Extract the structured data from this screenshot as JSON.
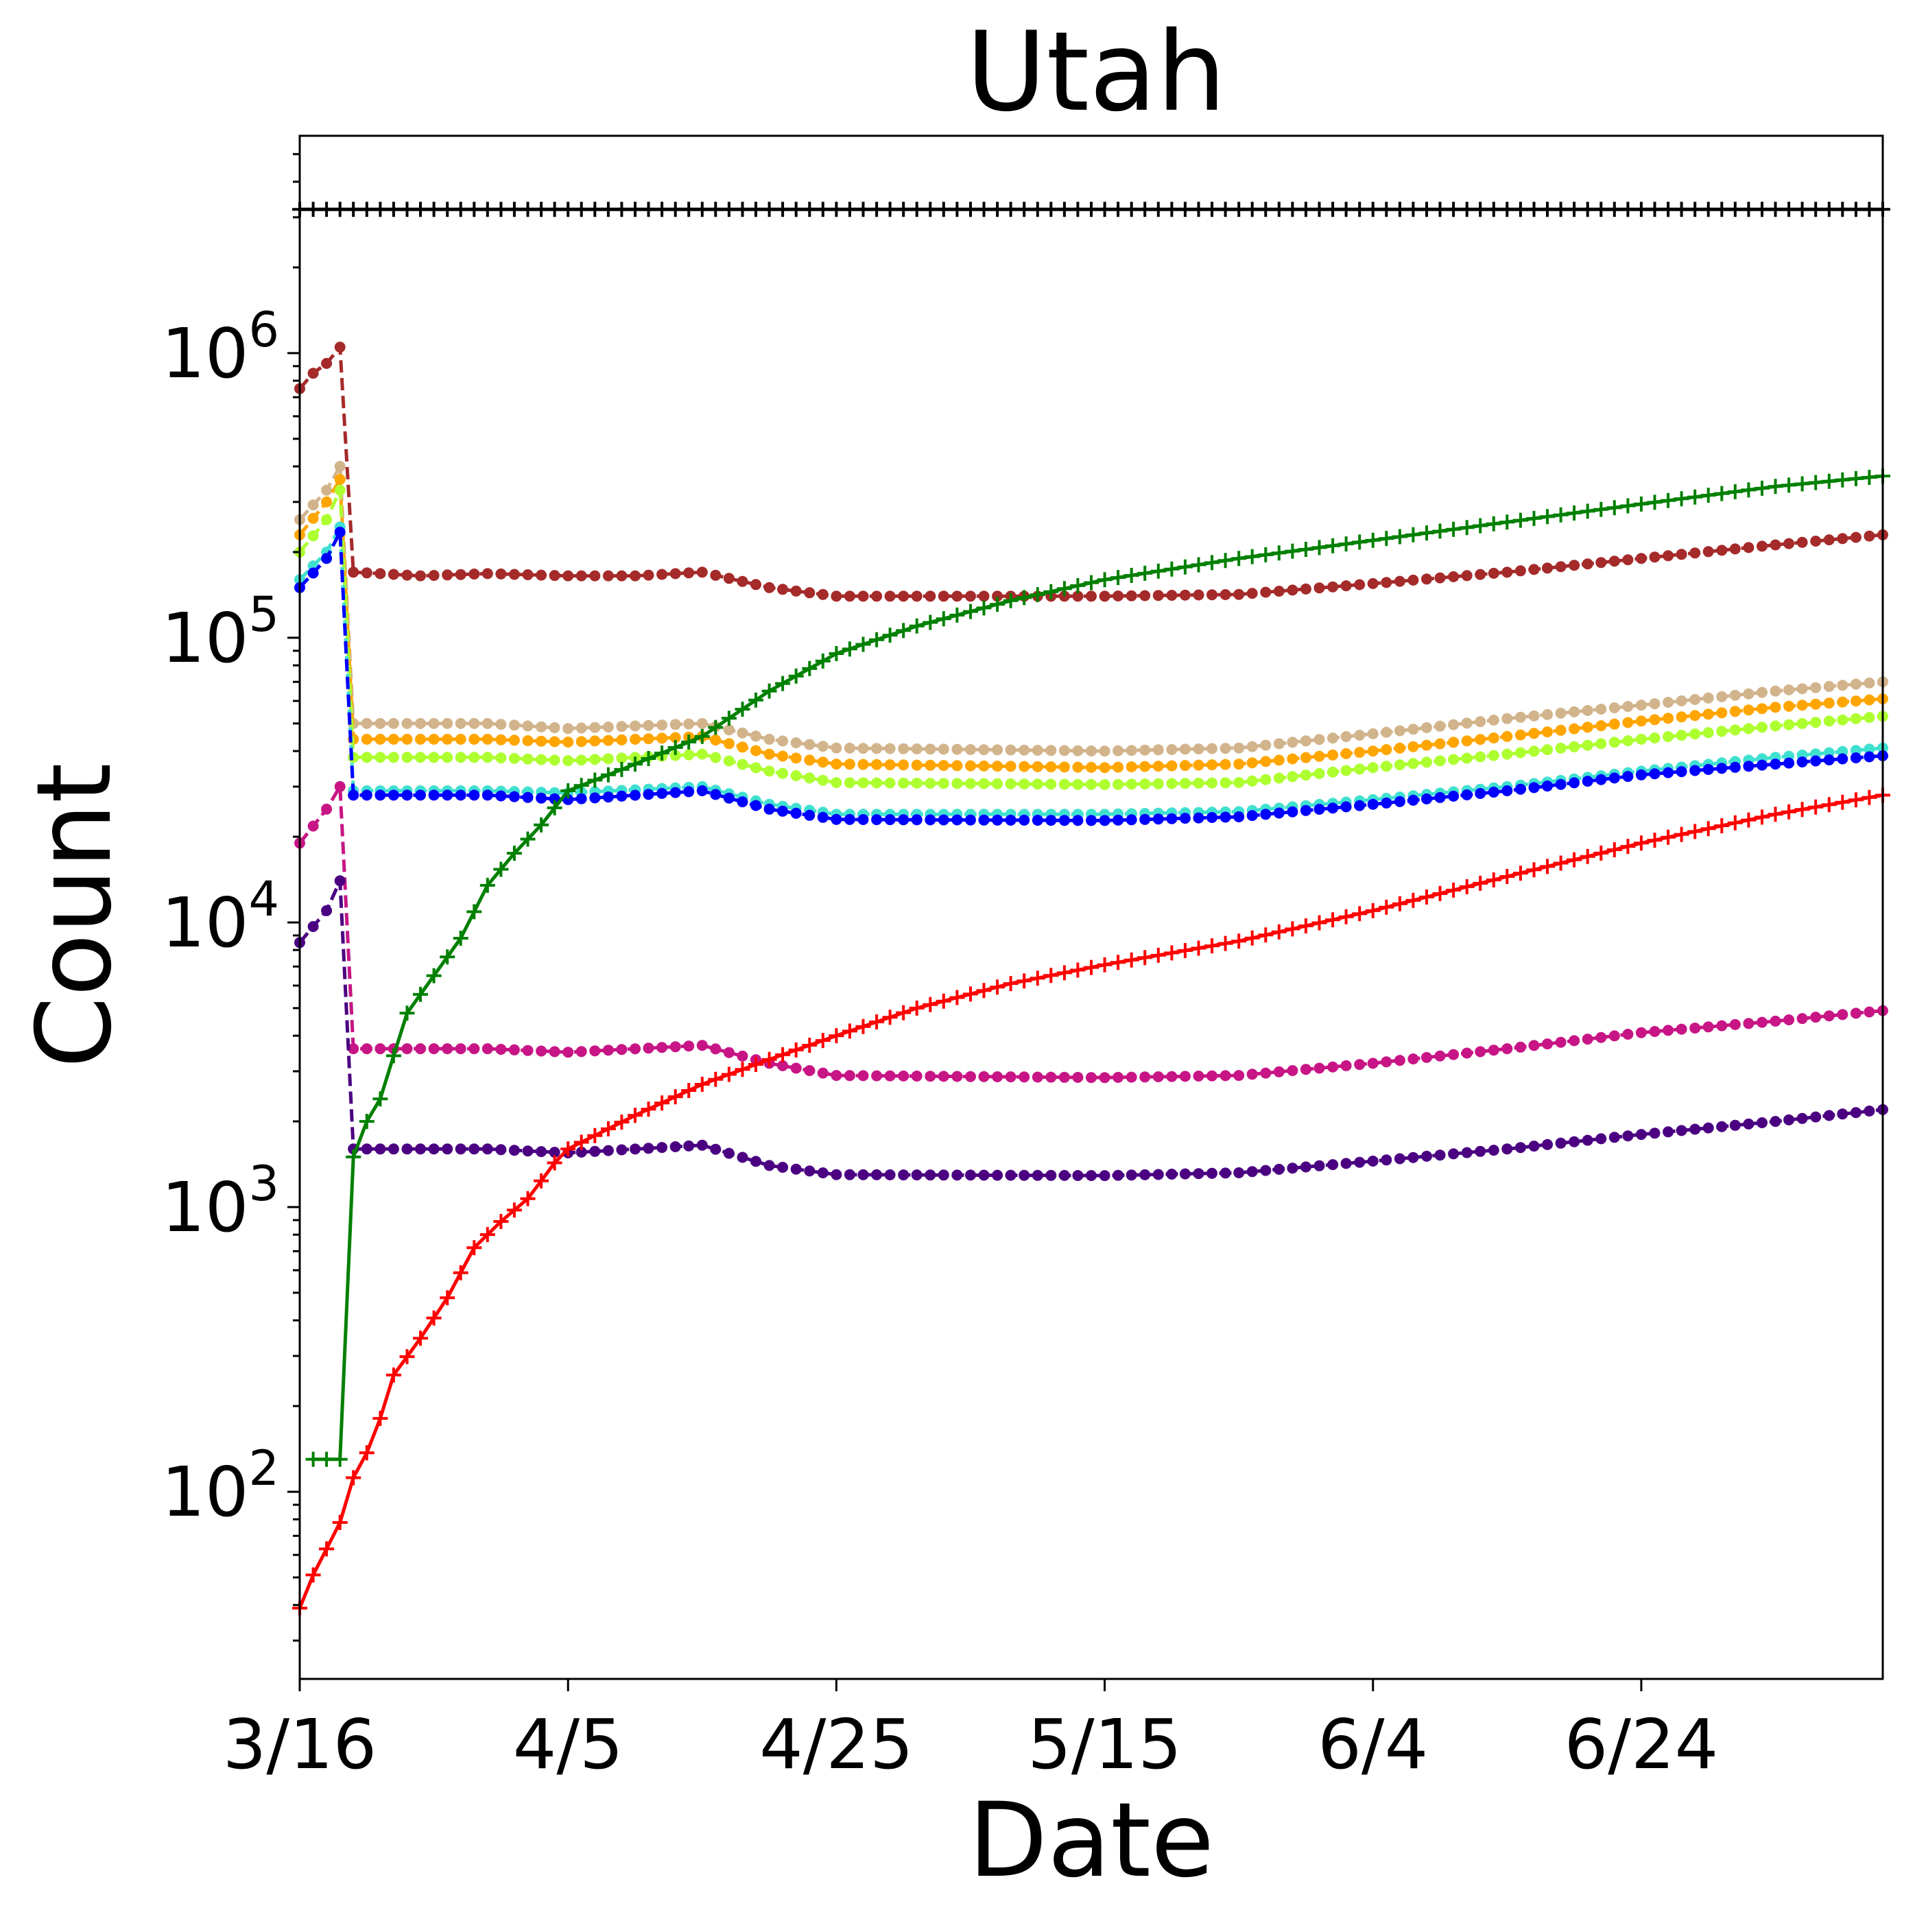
{
  "chart_data": {
    "type": "line",
    "title": "Utah",
    "xlabel": "Date",
    "ylabel": "Count",
    "yscale": "log",
    "xlim": [
      "2020-03-16",
      "2020-07-12"
    ],
    "ylim": [
      22,
      5800000
    ],
    "x_ticks": [
      "3/16",
      "4/5",
      "4/25",
      "5/15",
      "6/4",
      "6/24"
    ],
    "x_tick_dates": [
      "2020-03-16",
      "2020-04-05",
      "2020-04-25",
      "2020-05-15",
      "2020-06-04",
      "2020-06-24"
    ],
    "y_ticks": [
      {
        "base": "10",
        "exp": "2",
        "value": 100
      },
      {
        "base": "10",
        "exp": "3",
        "value": 1000
      },
      {
        "base": "10",
        "exp": "4",
        "value": 10000
      },
      {
        "base": "10",
        "exp": "5",
        "value": 100000
      },
      {
        "base": "10",
        "exp": "6",
        "value": 1000000
      }
    ],
    "grid": false,
    "legend": "none",
    "series": [
      {
        "color": "#000000",
        "style": "solid",
        "marker": "plus",
        "points": [
          [
            "2020-03-16",
            3200000
          ],
          [
            "2020-07-12",
            3200000
          ]
        ]
      },
      {
        "color": "#a52a2a",
        "style": "dashed",
        "marker": "dot",
        "points": [
          [
            "2020-03-16",
            750000
          ],
          [
            "2020-03-17",
            850000
          ],
          [
            "2020-03-18",
            920000
          ],
          [
            "2020-03-19",
            1050000
          ],
          [
            "2020-03-20",
            170000
          ],
          [
            "2020-03-25",
            165000
          ],
          [
            "2020-03-30",
            168000
          ],
          [
            "2020-04-05",
            165000
          ],
          [
            "2020-04-10",
            165000
          ],
          [
            "2020-04-15",
            170000
          ],
          [
            "2020-04-20",
            150000
          ],
          [
            "2020-04-25",
            140000
          ],
          [
            "2020-05-05",
            140000
          ],
          [
            "2020-05-15",
            140000
          ],
          [
            "2020-05-25",
            142000
          ],
          [
            "2020-06-04",
            155000
          ],
          [
            "2020-06-14",
            170000
          ],
          [
            "2020-06-24",
            190000
          ],
          [
            "2020-07-04",
            212000
          ],
          [
            "2020-07-12",
            230000
          ]
        ]
      },
      {
        "color": "#d2b48c",
        "style": "dashed",
        "marker": "dot",
        "points": [
          [
            "2020-03-16",
            260000
          ],
          [
            "2020-03-18",
            330000
          ],
          [
            "2020-03-19",
            400000
          ],
          [
            "2020-03-20",
            50000
          ],
          [
            "2020-03-30",
            50000
          ],
          [
            "2020-04-05",
            48000
          ],
          [
            "2020-04-15",
            50000
          ],
          [
            "2020-04-20",
            44000
          ],
          [
            "2020-04-25",
            41000
          ],
          [
            "2020-05-15",
            40000
          ],
          [
            "2020-05-25",
            41000
          ],
          [
            "2020-06-04",
            46000
          ],
          [
            "2020-06-14",
            52000
          ],
          [
            "2020-06-24",
            58000
          ],
          [
            "2020-07-04",
            65000
          ],
          [
            "2020-07-12",
            70000
          ]
        ]
      },
      {
        "color": "#ffa500",
        "style": "dashed",
        "marker": "dot",
        "points": [
          [
            "2020-03-16",
            230000
          ],
          [
            "2020-03-18",
            300000
          ],
          [
            "2020-03-19",
            360000
          ],
          [
            "2020-03-20",
            44000
          ],
          [
            "2020-03-30",
            44000
          ],
          [
            "2020-04-05",
            43000
          ],
          [
            "2020-04-15",
            45000
          ],
          [
            "2020-04-20",
            39000
          ],
          [
            "2020-04-25",
            36000
          ],
          [
            "2020-05-15",
            35000
          ],
          [
            "2020-05-25",
            36000
          ],
          [
            "2020-06-04",
            40000
          ],
          [
            "2020-06-14",
            45000
          ],
          [
            "2020-06-24",
            51000
          ],
          [
            "2020-07-04",
            57000
          ],
          [
            "2020-07-12",
            61000
          ]
        ]
      },
      {
        "color": "#adff2f",
        "style": "dashed",
        "marker": "dot",
        "points": [
          [
            "2020-03-16",
            200000
          ],
          [
            "2020-03-18",
            260000
          ],
          [
            "2020-03-19",
            330000
          ],
          [
            "2020-03-20",
            38000
          ],
          [
            "2020-03-30",
            38000
          ],
          [
            "2020-04-05",
            37000
          ],
          [
            "2020-04-15",
            39000
          ],
          [
            "2020-04-20",
            34000
          ],
          [
            "2020-04-25",
            31000
          ],
          [
            "2020-05-15",
            30500
          ],
          [
            "2020-05-25",
            31000
          ],
          [
            "2020-06-04",
            35000
          ],
          [
            "2020-06-14",
            39000
          ],
          [
            "2020-06-24",
            44000
          ],
          [
            "2020-07-04",
            49000
          ],
          [
            "2020-07-12",
            53000
          ]
        ]
      },
      {
        "color": "#40e0d0",
        "style": "dashed",
        "marker": "dot",
        "points": [
          [
            "2020-03-16",
            160000
          ],
          [
            "2020-03-18",
            200000
          ],
          [
            "2020-03-19",
            245000
          ],
          [
            "2020-03-20",
            29000
          ],
          [
            "2020-03-30",
            29000
          ],
          [
            "2020-04-05",
            28500
          ],
          [
            "2020-04-15",
            30000
          ],
          [
            "2020-04-20",
            26000
          ],
          [
            "2020-04-25",
            24000
          ],
          [
            "2020-05-15",
            24000
          ],
          [
            "2020-05-25",
            24500
          ],
          [
            "2020-06-04",
            27000
          ],
          [
            "2020-06-14",
            30000
          ],
          [
            "2020-06-24",
            34000
          ],
          [
            "2020-07-04",
            38000
          ],
          [
            "2020-07-12",
            41000
          ]
        ]
      },
      {
        "color": "#0000ff",
        "style": "dashed",
        "marker": "dot",
        "points": [
          [
            "2020-03-16",
            150000
          ],
          [
            "2020-03-18",
            190000
          ],
          [
            "2020-03-19",
            235000
          ],
          [
            "2020-03-20",
            28000
          ],
          [
            "2020-03-30",
            28000
          ],
          [
            "2020-04-05",
            27000
          ],
          [
            "2020-04-15",
            29000
          ],
          [
            "2020-04-20",
            25000
          ],
          [
            "2020-04-25",
            23000
          ],
          [
            "2020-05-15",
            22800
          ],
          [
            "2020-05-25",
            23500
          ],
          [
            "2020-06-04",
            26000
          ],
          [
            "2020-06-14",
            29000
          ],
          [
            "2020-06-24",
            33000
          ],
          [
            "2020-07-04",
            36000
          ],
          [
            "2020-07-12",
            38500
          ]
        ]
      },
      {
        "color": "#c71585",
        "style": "dashed",
        "marker": "dot",
        "points": [
          [
            "2020-03-16",
            19000
          ],
          [
            "2020-03-18",
            25000
          ],
          [
            "2020-03-19",
            30000
          ],
          [
            "2020-03-20",
            3600
          ],
          [
            "2020-03-30",
            3600
          ],
          [
            "2020-04-05",
            3500
          ],
          [
            "2020-04-15",
            3700
          ],
          [
            "2020-04-20",
            3200
          ],
          [
            "2020-04-25",
            2900
          ],
          [
            "2020-05-15",
            2850
          ],
          [
            "2020-05-25",
            2900
          ],
          [
            "2020-06-04",
            3200
          ],
          [
            "2020-06-14",
            3600
          ],
          [
            "2020-06-24",
            4100
          ],
          [
            "2020-07-04",
            4500
          ],
          [
            "2020-07-12",
            4900
          ]
        ]
      },
      {
        "color": "#4b0082",
        "style": "dashed",
        "marker": "dot",
        "points": [
          [
            "2020-03-16",
            8500
          ],
          [
            "2020-03-18",
            11000
          ],
          [
            "2020-03-19",
            14000
          ],
          [
            "2020-03-20",
            1600
          ],
          [
            "2020-03-30",
            1600
          ],
          [
            "2020-04-05",
            1550
          ],
          [
            "2020-04-15",
            1650
          ],
          [
            "2020-04-20",
            1400
          ],
          [
            "2020-04-25",
            1300
          ],
          [
            "2020-05-15",
            1290
          ],
          [
            "2020-05-25",
            1320
          ],
          [
            "2020-06-04",
            1450
          ],
          [
            "2020-06-14",
            1600
          ],
          [
            "2020-06-24",
            1800
          ],
          [
            "2020-07-04",
            2000
          ],
          [
            "2020-07-12",
            2200
          ]
        ]
      },
      {
        "color": "#008000",
        "style": "solid",
        "marker": "plus",
        "points": [
          [
            "2020-03-17",
            130
          ],
          [
            "2020-03-19",
            130
          ],
          [
            "2020-03-20",
            1500
          ],
          [
            "2020-03-21",
            2000
          ],
          [
            "2020-03-22",
            2400
          ],
          [
            "2020-03-23",
            3400
          ],
          [
            "2020-03-24",
            4800
          ],
          [
            "2020-03-26",
            6500
          ],
          [
            "2020-03-28",
            8800
          ],
          [
            "2020-03-30",
            13500
          ],
          [
            "2020-04-01",
            17500
          ],
          [
            "2020-04-03",
            22000
          ],
          [
            "2020-04-05",
            29000
          ],
          [
            "2020-04-10",
            36000
          ],
          [
            "2020-04-15",
            45000
          ],
          [
            "2020-04-20",
            65000
          ],
          [
            "2020-04-25",
            88000
          ],
          [
            "2020-05-01",
            110000
          ],
          [
            "2020-05-08",
            135000
          ],
          [
            "2020-05-15",
            160000
          ],
          [
            "2020-05-25",
            190000
          ],
          [
            "2020-06-04",
            220000
          ],
          [
            "2020-06-14",
            255000
          ],
          [
            "2020-06-24",
            295000
          ],
          [
            "2020-07-04",
            340000
          ],
          [
            "2020-07-12",
            370000
          ]
        ]
      },
      {
        "color": "#ff0000",
        "style": "solid",
        "marker": "plus",
        "points": [
          [
            "2020-03-16",
            39
          ],
          [
            "2020-03-17",
            51
          ],
          [
            "2020-03-18",
            63
          ],
          [
            "2020-03-19",
            78
          ],
          [
            "2020-03-20",
            112
          ],
          [
            "2020-03-21",
            137
          ],
          [
            "2020-03-22",
            181
          ],
          [
            "2020-03-23",
            257
          ],
          [
            "2020-03-25",
            346
          ],
          [
            "2020-03-27",
            480
          ],
          [
            "2020-03-29",
            720
          ],
          [
            "2020-03-31",
            890
          ],
          [
            "2020-04-02",
            1070
          ],
          [
            "2020-04-04",
            1430
          ],
          [
            "2020-04-05",
            1600
          ],
          [
            "2020-04-10",
            2100
          ],
          [
            "2020-04-15",
            2700
          ],
          [
            "2020-04-20",
            3300
          ],
          [
            "2020-04-25",
            4000
          ],
          [
            "2020-05-01",
            5000
          ],
          [
            "2020-05-08",
            6100
          ],
          [
            "2020-05-15",
            7100
          ],
          [
            "2020-05-25",
            8600
          ],
          [
            "2020-06-04",
            11000
          ],
          [
            "2020-06-14",
            14500
          ],
          [
            "2020-06-24",
            19000
          ],
          [
            "2020-07-04",
            24000
          ],
          [
            "2020-07-12",
            28000
          ]
        ]
      }
    ]
  }
}
